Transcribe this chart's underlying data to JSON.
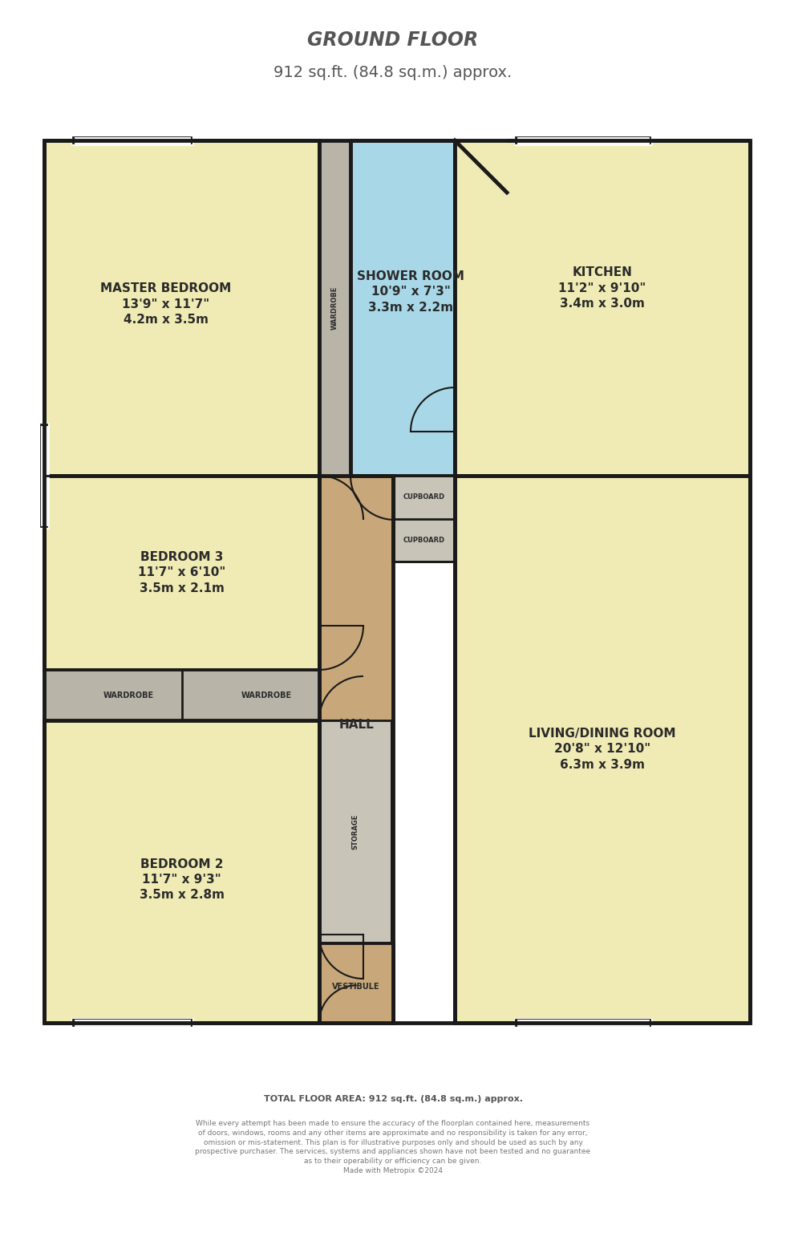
{
  "title_line1": "GROUND FLOOR",
  "title_line2": "912 sq.ft. (84.8 sq.m.) approx.",
  "footer_line1": "TOTAL FLOOR AREA: 912 sq.ft. (84.8 sq.m.) approx.",
  "footer_line2": "While every attempt has been made to ensure the accuracy of the floorplan contained here, measurements\nof doors, windows, rooms and any other items are approximate and no responsibility is taken for any error,\nomission or mis-statement. This plan is for illustrative purposes only and should be used as such by any\nprospective purchaser. The services, systems and appliances shown have not been tested and no guarantee\nas to their operability or efficiency can be given.\nMade with Metropix ©2024",
  "bg_color": "#ffffff",
  "wall_color": "#1a1a1a",
  "room_yellow": "#f0ebb4",
  "room_blue": "#a8d8e8",
  "room_tan": "#c8a87a",
  "room_gray": "#b8b4a8",
  "room_light_gray": "#c8c4b8",
  "text_color": "#2a2a2a",
  "title_color": "#555555",
  "footer_color": "#555555",
  "lw_outer": 3.5,
  "lw_inner": 2.0,
  "lw_door": 1.5
}
